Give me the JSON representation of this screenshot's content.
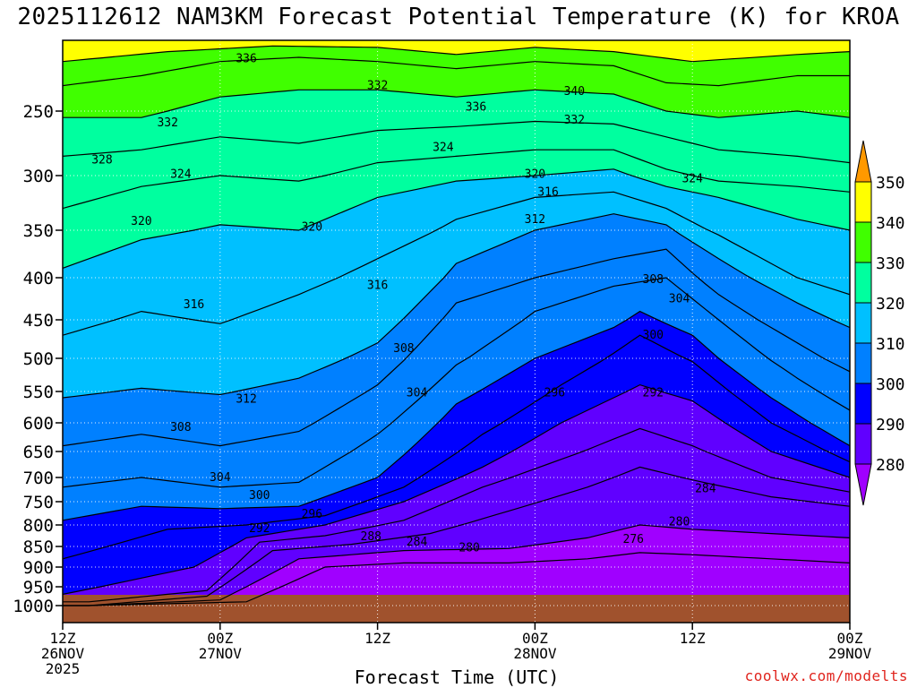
{
  "title": "2025112612 NAM3KM Forecast Potential Temperature (K) for KROA",
  "credit": "coolwx.com/modelts",
  "colors": {
    "ground": "#a0522d",
    "contour": "#000000",
    "credit": "#e0241d"
  },
  "chart_data": {
    "type": "contour",
    "title": "2025112612 NAM3KM Forecast Potential Temperature (K) for KROA",
    "xlabel": "Forecast Time (UTC)",
    "ylabel": "",
    "x_ticks": [
      {
        "hour": 0,
        "lines": [
          "12Z",
          "26NOV",
          "2025"
        ]
      },
      {
        "hour": 12,
        "lines": [
          "00Z",
          "27NOV"
        ]
      },
      {
        "hour": 24,
        "lines": [
          "12Z"
        ]
      },
      {
        "hour": 36,
        "lines": [
          "00Z",
          "28NOV"
        ]
      },
      {
        "hour": 48,
        "lines": [
          "12Z"
        ]
      },
      {
        "hour": 60,
        "lines": [
          "00Z",
          "29NOV"
        ]
      }
    ],
    "xlim_hours": [
      0,
      60
    ],
    "y_axis": "pressure (hPa), inverted",
    "y_ticks": [
      "250",
      "300",
      "350",
      "400",
      "450",
      "500",
      "550",
      "600",
      "650",
      "700",
      "750",
      "800",
      "850",
      "900",
      "950",
      "1000"
    ],
    "ylim_hpa": [
      1050,
      200
    ],
    "grid": "dotted",
    "colorbar": {
      "placement": "right",
      "levels": [
        280,
        290,
        300,
        310,
        320,
        330,
        340,
        350
      ],
      "labels": [
        "280",
        "290",
        "300",
        "310",
        "320",
        "330",
        "340",
        "350"
      ],
      "band_colors": [
        "#a000ff",
        "#6000ff",
        "#0000ff",
        "#0080ff",
        "#00c0ff",
        "#00ff9f",
        "#40ff00",
        "#ffff00",
        "#ff9900"
      ]
    },
    "isentropes": [
      {
        "value": 276,
        "label": "276",
        "points": [
          [
            2,
            1000
          ],
          [
            14,
            990
          ],
          [
            20,
            900
          ],
          [
            26,
            890
          ],
          [
            34,
            890
          ],
          [
            40,
            880
          ],
          [
            44,
            865
          ],
          [
            48,
            870
          ],
          [
            54,
            880
          ],
          [
            60,
            890
          ]
        ]
      },
      {
        "value": 280,
        "label": "280",
        "points": [
          [
            2,
            1000
          ],
          [
            12,
            985
          ],
          [
            18,
            880
          ],
          [
            26,
            860
          ],
          [
            34,
            855
          ],
          [
            40,
            830
          ],
          [
            44,
            800
          ],
          [
            48,
            810
          ],
          [
            54,
            820
          ],
          [
            60,
            830
          ]
        ]
      },
      {
        "value": 284,
        "label": "284",
        "points": [
          [
            2,
            1000
          ],
          [
            11,
            975
          ],
          [
            16,
            860
          ],
          [
            22,
            845
          ],
          [
            28,
            820
          ],
          [
            34,
            770
          ],
          [
            40,
            720
          ],
          [
            44,
            680
          ],
          [
            48,
            705
          ],
          [
            54,
            740
          ],
          [
            60,
            760
          ]
        ]
      },
      {
        "value": 288,
        "label": "288",
        "points": [
          [
            2,
            990
          ],
          [
            11,
            960
          ],
          [
            15,
            840
          ],
          [
            20,
            825
          ],
          [
            26,
            790
          ],
          [
            32,
            720
          ],
          [
            38,
            665
          ],
          [
            44,
            610
          ],
          [
            48,
            640
          ],
          [
            54,
            700
          ],
          [
            60,
            730
          ]
        ]
      },
      {
        "value": 292,
        "label": "292",
        "points": [
          [
            0,
            970
          ],
          [
            10,
            900
          ],
          [
            14,
            830
          ],
          [
            20,
            800
          ],
          [
            26,
            750
          ],
          [
            32,
            680
          ],
          [
            38,
            600
          ],
          [
            44,
            540
          ],
          [
            48,
            565
          ],
          [
            54,
            650
          ],
          [
            60,
            700
          ]
        ]
      },
      {
        "value": 296,
        "label": "296",
        "points": [
          [
            0,
            880
          ],
          [
            8,
            810
          ],
          [
            14,
            800
          ],
          [
            20,
            780
          ],
          [
            26,
            720
          ],
          [
            32,
            620
          ],
          [
            38,
            540
          ],
          [
            44,
            470
          ],
          [
            48,
            505
          ],
          [
            54,
            600
          ],
          [
            60,
            670
          ]
        ]
      },
      {
        "value": 300,
        "label": "300",
        "points": [
          [
            0,
            790
          ],
          [
            6,
            760
          ],
          [
            12,
            765
          ],
          [
            18,
            760
          ],
          [
            24,
            700
          ],
          [
            30,
            570
          ],
          [
            36,
            500
          ],
          [
            42,
            460
          ],
          [
            44,
            440
          ],
          [
            48,
            470
          ],
          [
            54,
            560
          ],
          [
            60,
            640
          ]
        ]
      },
      {
        "value": 304,
        "label": "304",
        "points": [
          [
            0,
            720
          ],
          [
            6,
            700
          ],
          [
            12,
            720
          ],
          [
            18,
            710
          ],
          [
            24,
            620
          ],
          [
            30,
            510
          ],
          [
            36,
            440
          ],
          [
            42,
            410
          ],
          [
            46,
            400
          ],
          [
            50,
            450
          ],
          [
            56,
            530
          ],
          [
            60,
            580
          ]
        ]
      },
      {
        "value": 308,
        "label": "308",
        "points": [
          [
            0,
            640
          ],
          [
            6,
            620
          ],
          [
            12,
            640
          ],
          [
            18,
            615
          ],
          [
            24,
            540
          ],
          [
            30,
            430
          ],
          [
            36,
            400
          ],
          [
            42,
            380
          ],
          [
            46,
            370
          ],
          [
            50,
            420
          ],
          [
            56,
            480
          ],
          [
            60,
            520
          ]
        ]
      },
      {
        "value": 312,
        "label": "312",
        "points": [
          [
            0,
            560
          ],
          [
            6,
            545
          ],
          [
            12,
            555
          ],
          [
            18,
            530
          ],
          [
            24,
            480
          ],
          [
            30,
            385
          ],
          [
            36,
            350
          ],
          [
            42,
            335
          ],
          [
            46,
            345
          ],
          [
            50,
            380
          ],
          [
            56,
            430
          ],
          [
            60,
            460
          ]
        ]
      },
      {
        "value": 316,
        "label": "316",
        "points": [
          [
            0,
            470
          ],
          [
            6,
            440
          ],
          [
            12,
            455
          ],
          [
            18,
            420
          ],
          [
            24,
            380
          ],
          [
            30,
            340
          ],
          [
            36,
            320
          ],
          [
            42,
            315
          ],
          [
            46,
            330
          ],
          [
            50,
            355
          ],
          [
            56,
            400
          ],
          [
            60,
            420
          ]
        ]
      },
      {
        "value": 320,
        "label": "320",
        "points": [
          [
            0,
            390
          ],
          [
            6,
            360
          ],
          [
            12,
            345
          ],
          [
            18,
            350
          ],
          [
            24,
            320
          ],
          [
            30,
            305
          ],
          [
            36,
            300
          ],
          [
            42,
            295
          ],
          [
            46,
            310
          ],
          [
            50,
            320
          ],
          [
            56,
            340
          ],
          [
            60,
            350
          ]
        ]
      },
      {
        "value": 324,
        "label": "324",
        "points": [
          [
            0,
            330
          ],
          [
            6,
            310
          ],
          [
            12,
            300
          ],
          [
            18,
            305
          ],
          [
            24,
            290
          ],
          [
            30,
            285
          ],
          [
            36,
            280
          ],
          [
            42,
            280
          ],
          [
            46,
            295
          ],
          [
            50,
            305
          ],
          [
            56,
            310
          ],
          [
            60,
            315
          ]
        ]
      },
      {
        "value": 328,
        "label": "328",
        "points": [
          [
            0,
            285
          ],
          [
            6,
            280
          ],
          [
            12,
            270
          ],
          [
            18,
            275
          ],
          [
            24,
            265
          ],
          [
            30,
            262
          ],
          [
            36,
            258
          ],
          [
            42,
            260
          ],
          [
            46,
            270
          ],
          [
            50,
            280
          ],
          [
            56,
            285
          ],
          [
            60,
            290
          ]
        ]
      },
      {
        "value": 332,
        "label": "332",
        "points": [
          [
            0,
            255
          ],
          [
            6,
            255
          ],
          [
            12,
            240
          ],
          [
            18,
            235
          ],
          [
            24,
            235
          ],
          [
            30,
            240
          ],
          [
            36,
            235
          ],
          [
            42,
            238
          ],
          [
            46,
            250
          ],
          [
            50,
            255
          ],
          [
            56,
            250
          ],
          [
            60,
            255
          ]
        ]
      },
      {
        "value": 336,
        "label": "336",
        "points": [
          [
            0,
            232
          ],
          [
            6,
            225
          ],
          [
            12,
            215
          ],
          [
            18,
            212
          ],
          [
            24,
            215
          ],
          [
            30,
            220
          ],
          [
            36,
            215
          ],
          [
            42,
            218
          ],
          [
            46,
            230
          ],
          [
            50,
            232
          ],
          [
            56,
            225
          ],
          [
            60,
            225
          ]
        ]
      },
      {
        "value": 340,
        "label": "340",
        "points": [
          [
            0,
            215
          ],
          [
            8,
            208
          ],
          [
            16,
            204
          ],
          [
            24,
            205
          ],
          [
            30,
            210
          ],
          [
            36,
            205
          ],
          [
            42,
            208
          ],
          [
            48,
            215
          ],
          [
            56,
            210
          ],
          [
            60,
            208
          ]
        ]
      }
    ],
    "contour_labels": [
      {
        "text": "336",
        "hour": 14.0,
        "hpa": 213
      },
      {
        "text": "332",
        "hour": 24.0,
        "hpa": 232
      },
      {
        "text": "340",
        "hour": 39.0,
        "hpa": 236
      },
      {
        "text": "336",
        "hour": 31.5,
        "hpa": 247
      },
      {
        "text": "332",
        "hour": 39.0,
        "hpa": 257
      },
      {
        "text": "332",
        "hour": 8.0,
        "hpa": 259
      },
      {
        "text": "324",
        "hour": 29.0,
        "hpa": 278
      },
      {
        "text": "328",
        "hour": 3.0,
        "hpa": 288
      },
      {
        "text": "320",
        "hour": 36.0,
        "hpa": 299
      },
      {
        "text": "324",
        "hour": 9.0,
        "hpa": 299
      },
      {
        "text": "324",
        "hour": 48.0,
        "hpa": 303
      },
      {
        "text": "316",
        "hour": 37.0,
        "hpa": 315
      },
      {
        "text": "312",
        "hour": 36.0,
        "hpa": 340
      },
      {
        "text": "320",
        "hour": 6.0,
        "hpa": 342
      },
      {
        "text": "320",
        "hour": 19.0,
        "hpa": 347
      },
      {
        "text": "316",
        "hour": 24.0,
        "hpa": 409
      },
      {
        "text": "308",
        "hour": 45.0,
        "hpa": 402
      },
      {
        "text": "304",
        "hour": 47.0,
        "hpa": 425
      },
      {
        "text": "316",
        "hour": 10.0,
        "hpa": 432
      },
      {
        "text": "300",
        "hour": 45.0,
        "hpa": 470
      },
      {
        "text": "308",
        "hour": 26.0,
        "hpa": 487
      },
      {
        "text": "304",
        "hour": 27.0,
        "hpa": 552
      },
      {
        "text": "296",
        "hour": 37.5,
        "hpa": 552
      },
      {
        "text": "292",
        "hour": 45.0,
        "hpa": 552
      },
      {
        "text": "312",
        "hour": 14.0,
        "hpa": 562
      },
      {
        "text": "308",
        "hour": 9.0,
        "hpa": 608
      },
      {
        "text": "304",
        "hour": 12.0,
        "hpa": 700
      },
      {
        "text": "284",
        "hour": 49.0,
        "hpa": 723
      },
      {
        "text": "300",
        "hour": 15.0,
        "hpa": 737
      },
      {
        "text": "296",
        "hour": 19.0,
        "hpa": 777
      },
      {
        "text": "280",
        "hour": 47.0,
        "hpa": 793
      },
      {
        "text": "292",
        "hour": 15.0,
        "hpa": 808
      },
      {
        "text": "288",
        "hour": 23.5,
        "hpa": 827
      },
      {
        "text": "284",
        "hour": 27.0,
        "hpa": 840
      },
      {
        "text": "280",
        "hour": 31.0,
        "hpa": 853
      },
      {
        "text": "276",
        "hour": 43.5,
        "hpa": 833
      }
    ]
  }
}
